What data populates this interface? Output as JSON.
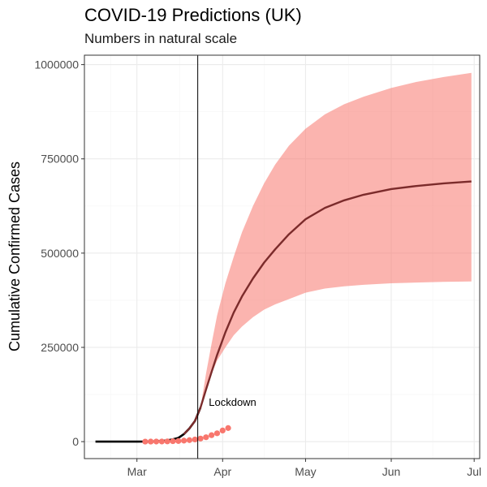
{
  "chart_data": {
    "type": "line",
    "title": "COVID-19 Predictions (UK)",
    "subtitle": "Numbers in natural scale",
    "xlabel": "",
    "ylabel": "Cumulative Confirmed Cases",
    "x_axis": {
      "type": "date",
      "range": [
        "2020-02-11",
        "2020-07-03"
      ],
      "ticks": [
        {
          "date": "2020-03-01",
          "label": "Mar"
        },
        {
          "date": "2020-04-01",
          "label": "Apr"
        },
        {
          "date": "2020-05-01",
          "label": "May"
        },
        {
          "date": "2020-06-01",
          "label": "Jun"
        },
        {
          "date": "2020-07-01",
          "label": "Jul"
        }
      ]
    },
    "y_axis": {
      "range": [
        -45000,
        1025000
      ],
      "ticks": [
        {
          "value": 0,
          "label": "0"
        },
        {
          "value": 250000,
          "label": "250000"
        },
        {
          "value": 500000,
          "label": "500000"
        },
        {
          "value": 750000,
          "label": "750000"
        },
        {
          "value": 1000000,
          "label": "1000000"
        }
      ]
    },
    "grid": true,
    "colors": {
      "band": "#f8766d",
      "predicted_line": "#7b2b2b",
      "observed": "#f8766d",
      "fitted_pre": "#000000",
      "vline": "#000000"
    },
    "series": [
      {
        "role": "prediction_interval",
        "x": [
          "2020-03-24",
          "2020-03-26",
          "2020-03-28",
          "2020-03-30",
          "2020-04-02",
          "2020-04-05",
          "2020-04-08",
          "2020-04-12",
          "2020-04-16",
          "2020-04-20",
          "2020-04-25",
          "2020-05-01",
          "2020-05-08",
          "2020-05-15",
          "2020-05-22",
          "2020-06-01",
          "2020-06-10",
          "2020-06-20",
          "2020-06-30"
        ],
        "lower": [
          90000,
          140000,
          180000,
          215000,
          250000,
          282000,
          305000,
          330000,
          350000,
          364000,
          378000,
          395000,
          406000,
          412000,
          416000,
          420000,
          422000,
          424000,
          425000
        ],
        "upper": [
          90000,
          180000,
          260000,
          335000,
          420000,
          490000,
          555000,
          625000,
          685000,
          735000,
          785000,
          830000,
          868000,
          895000,
          915000,
          938000,
          954000,
          967000,
          978000
        ]
      },
      {
        "role": "predicted_mean",
        "x": [
          "2020-03-18",
          "2020-03-20",
          "2020-03-22",
          "2020-03-24",
          "2020-03-26",
          "2020-03-28",
          "2020-03-30",
          "2020-04-02",
          "2020-04-05",
          "2020-04-08",
          "2020-04-12",
          "2020-04-16",
          "2020-04-20",
          "2020-04-25",
          "2020-05-01",
          "2020-05-08",
          "2020-05-15",
          "2020-05-22",
          "2020-06-01",
          "2020-06-10",
          "2020-06-20",
          "2020-06-30"
        ],
        "y": [
          20000,
          35000,
          55000,
          90000,
          138000,
          185000,
          230000,
          290000,
          342000,
          385000,
          433000,
          475000,
          510000,
          550000,
          590000,
          620000,
          640000,
          655000,
          670000,
          678000,
          685000,
          690000
        ]
      },
      {
        "role": "fitted_before_lockdown",
        "x": [
          "2020-02-15",
          "2020-02-22",
          "2020-03-01",
          "2020-03-05",
          "2020-03-08",
          "2020-03-10",
          "2020-03-12",
          "2020-03-14",
          "2020-03-16",
          "2020-03-18",
          "2020-03-20",
          "2020-03-22",
          "2020-03-24"
        ],
        "y": [
          0,
          0,
          0,
          200,
          800,
          1800,
          3500,
          6000,
          10000,
          20000,
          35000,
          55000,
          90000
        ]
      },
      {
        "role": "observed",
        "x": [
          "2020-03-04",
          "2020-03-06",
          "2020-03-08",
          "2020-03-10",
          "2020-03-12",
          "2020-03-14",
          "2020-03-16",
          "2020-03-18",
          "2020-03-20",
          "2020-03-22",
          "2020-03-24",
          "2020-03-26",
          "2020-03-28",
          "2020-03-30",
          "2020-04-01",
          "2020-04-03"
        ],
        "y": [
          100,
          150,
          250,
          380,
          600,
          1100,
          1600,
          2600,
          4000,
          5700,
          8100,
          11700,
          17100,
          22100,
          29500,
          36000
        ]
      }
    ],
    "annotations": [
      {
        "text": "Lockdown",
        "x_line": "2020-03-23",
        "anchor_x": "2020-03-27",
        "anchor_y": 95000
      }
    ]
  }
}
